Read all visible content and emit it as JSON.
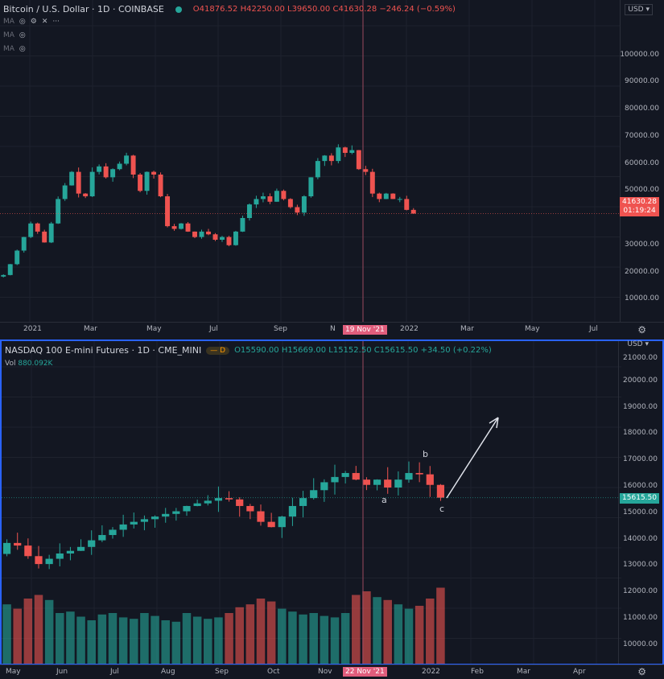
{
  "top": {
    "symbol": "Bitcoin / U.S. Dollar · 1D · COINBASE",
    "ohlc": {
      "o": "O41876.52",
      "h": "H42250.00",
      "l": "L39650.00",
      "c": "C41630.28",
      "chg": "−246.24 (−0.59%)"
    },
    "indicators": [
      "MA",
      "MA",
      "MA"
    ],
    "currency": "USD",
    "price_label": "41630.28",
    "countdown": "01:19:24",
    "crosshair_date": "19 Nov '21",
    "y_ticks": [
      "100000.00",
      "90000.00",
      "80000.00",
      "70000.00",
      "60000.00",
      "50000.00",
      "30000.00",
      "20000.00",
      "10000.00"
    ],
    "x_ticks": [
      "2021",
      "Mar",
      "May",
      "Jul",
      "Sep",
      "N",
      "2022",
      "Mar",
      "May",
      "Jul"
    ]
  },
  "bottom": {
    "symbol": "NASDAQ 100 E-mini Futures · 1D · CME_MINI",
    "badge": "D",
    "ohlc": {
      "o": "O15590.00",
      "h": "H15669.00",
      "l": "L15152.50",
      "c": "C15615.50",
      "chg": "+34.50 (+0.22%)"
    },
    "vol_label": "Vol",
    "vol_value": "880.092K",
    "currency": "USD",
    "price_label": "15615.50",
    "crosshair_date": "22 Nov '21",
    "y_ticks": [
      "21000.00",
      "20000.00",
      "19000.00",
      "18000.00",
      "17000.00",
      "16000.00",
      "15000.00",
      "14000.00",
      "13000.00",
      "12000.00",
      "11000.00",
      "10000.00"
    ],
    "x_ticks": [
      "May",
      "Jun",
      "Jul",
      "Aug",
      "Sep",
      "Oct",
      "Nov",
      "2022",
      "Feb",
      "Mar",
      "Apr"
    ],
    "wave_labels": [
      "a",
      "b",
      "c"
    ]
  },
  "colors": {
    "up": "#26a69a",
    "down": "#ef5350",
    "bg": "#131722",
    "crosshair": "#9b4a5e",
    "highlight": "#2962ff"
  },
  "chart_data": [
    {
      "type": "candlestick",
      "name": "Bitcoin / U.S. Dollar",
      "interval": "approx weekly closes",
      "ylim": [
        0,
        100000
      ],
      "closes": [
        19000,
        23000,
        28000,
        33000,
        38000,
        35000,
        31000,
        38000,
        47000,
        52000,
        57000,
        49000,
        48000,
        57000,
        59000,
        55000,
        58000,
        60000,
        63000,
        56000,
        50000,
        57000,
        56000,
        48000,
        37000,
        36000,
        38000,
        35000,
        33000,
        35000,
        34000,
        32000,
        33000,
        30000,
        35000,
        40000,
        45000,
        47000,
        48000,
        46000,
        50000,
        47000,
        44000,
        42000,
        48000,
        55000,
        61000,
        63000,
        61000,
        66000,
        64000,
        65000,
        58000,
        57000,
        49000,
        47000,
        49000,
        47000,
        47000,
        43000,
        41630
      ]
    },
    {
      "type": "candlestick",
      "name": "NASDAQ 100 E-mini Futures",
      "interval": "approx weekly closes",
      "ylim": [
        9500,
        21500
      ],
      "closes": [
        13900,
        13800,
        13400,
        13100,
        13300,
        13500,
        13600,
        13750,
        14000,
        14200,
        14400,
        14600,
        14700,
        14800,
        14900,
        15000,
        15100,
        15300,
        15400,
        15500,
        15600,
        15550,
        15300,
        15100,
        14700,
        14500,
        14900,
        15300,
        15600,
        15900,
        16200,
        16400,
        16550,
        16300,
        16100,
        16300,
        16000,
        16300,
        16550,
        16500,
        16100,
        15615.5
      ],
      "volume_k": [
        820,
        760,
        900,
        950,
        880,
        700,
        720,
        650,
        600,
        680,
        700,
        640,
        620,
        700,
        660,
        600,
        580,
        700,
        650,
        620,
        640,
        700,
        780,
        820,
        900,
        860,
        760,
        720,
        680,
        700,
        660,
        640,
        700,
        950,
        1000,
        920,
        880,
        820,
        760,
        800,
        900,
        1050
      ]
    }
  ]
}
